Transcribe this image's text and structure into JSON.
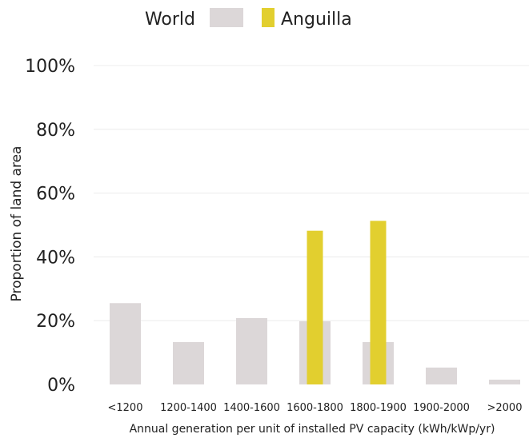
{
  "chart_data": {
    "type": "bar",
    "categories": [
      "<1200",
      "1200-1400",
      "1400-1600",
      "1600-1800",
      "1800-1900",
      "1900-2000",
      ">2000"
    ],
    "series": [
      {
        "name": "World",
        "color": "#dcd7d8",
        "values": [
          25.5,
          13.3,
          20.8,
          19.8,
          13.3,
          5.3,
          1.5
        ]
      },
      {
        "name": "Anguilla",
        "color": "#e2cf2f",
        "values": [
          0,
          0,
          0,
          48.2,
          51.3,
          0,
          0
        ]
      }
    ],
    "xlabel": "Annual generation per unit of installed PV capacity (kWh/kWp/yr)",
    "ylabel": "Proportion of land area",
    "ylim": [
      0,
      100
    ],
    "yticks": [
      "0%",
      "20%",
      "40%",
      "60%",
      "80%",
      "100%"
    ],
    "grid": true,
    "legend_position": "top"
  }
}
